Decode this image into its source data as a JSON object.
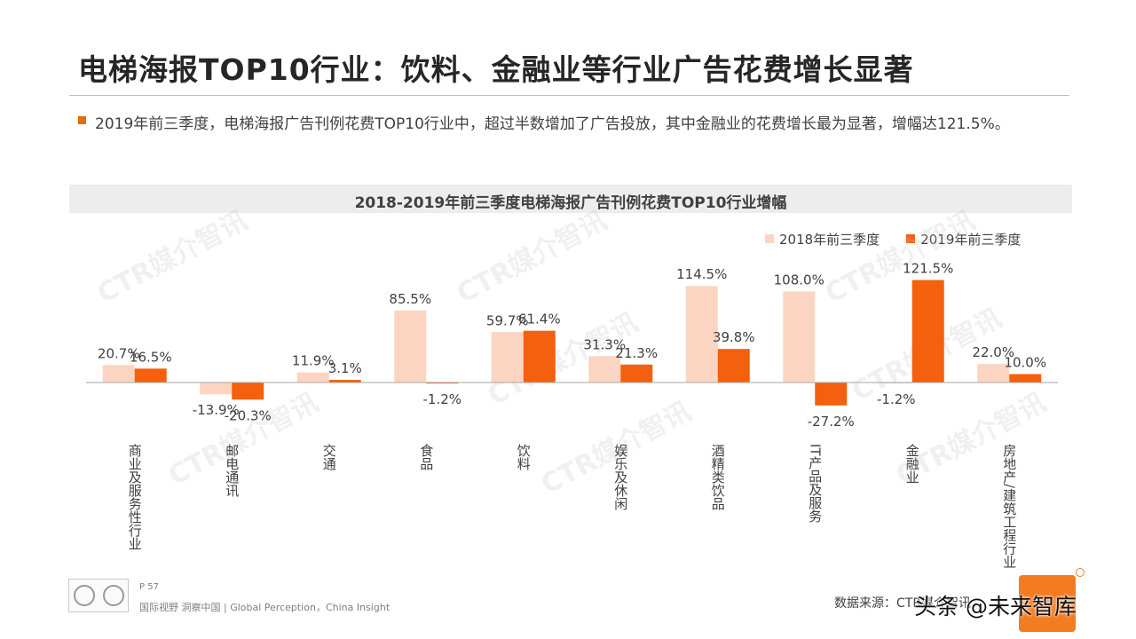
{
  "header": {
    "title": "电梯海报TOP10行业：饮料、金融业等行业广告花费增长显著",
    "summary": "2019年前三季度，电梯海报广告刊例花费TOP10行业中，超过半数增加了广告投放，其中金融业的花费增长最为显著，增幅达121.5%。"
  },
  "watermark_text": "CTR媒介智讯",
  "colors": {
    "series_2018": "#fbd5c2",
    "series_2019": "#f4600d",
    "bullet": "#e46c0a",
    "axis": "#a6a6a6"
  },
  "chart_data": {
    "type": "bar",
    "title": "2018-2019年前三季度电梯海报广告刊例花费TOP10行业增幅",
    "categories": [
      "商业及服务性行业",
      "邮电通讯",
      "交通",
      "食品",
      "饮料",
      "娱乐及休闲",
      "酒精类饮品",
      "IT产品及服务",
      "金融业",
      "房地产/建筑工程行业"
    ],
    "series": [
      {
        "name": "2018年前三季度",
        "values": [
          20.7,
          -13.9,
          11.9,
          85.5,
          59.7,
          31.3,
          114.5,
          108.0,
          -1.2,
          22.0
        ],
        "labels": [
          "20.7%",
          "-13.9%",
          "11.9%",
          "85.5%",
          "59.7%",
          "31.3%",
          "114.5%",
          "108.0%",
          "-1.2%",
          "22.0%"
        ]
      },
      {
        "name": "2019年前三季度",
        "values": [
          16.5,
          -20.3,
          3.1,
          -1.2,
          61.4,
          21.3,
          39.8,
          -27.2,
          121.5,
          10.0
        ],
        "labels": [
          "16.5%",
          "-20.3%",
          "3.1%",
          "-1.2%",
          "61.4%",
          "21.3%",
          "39.8%",
          "-27.2%",
          "121.5%",
          "10.0%"
        ]
      }
    ],
    "legend_position": "top-right",
    "grid": false
  },
  "footer": {
    "page": "P 57",
    "tagline": "国际视野  洞察中国 |  Global Perception，China Insight",
    "source": "数据来源：CTR媒介智讯",
    "overlay": "头条 @未来智库"
  }
}
